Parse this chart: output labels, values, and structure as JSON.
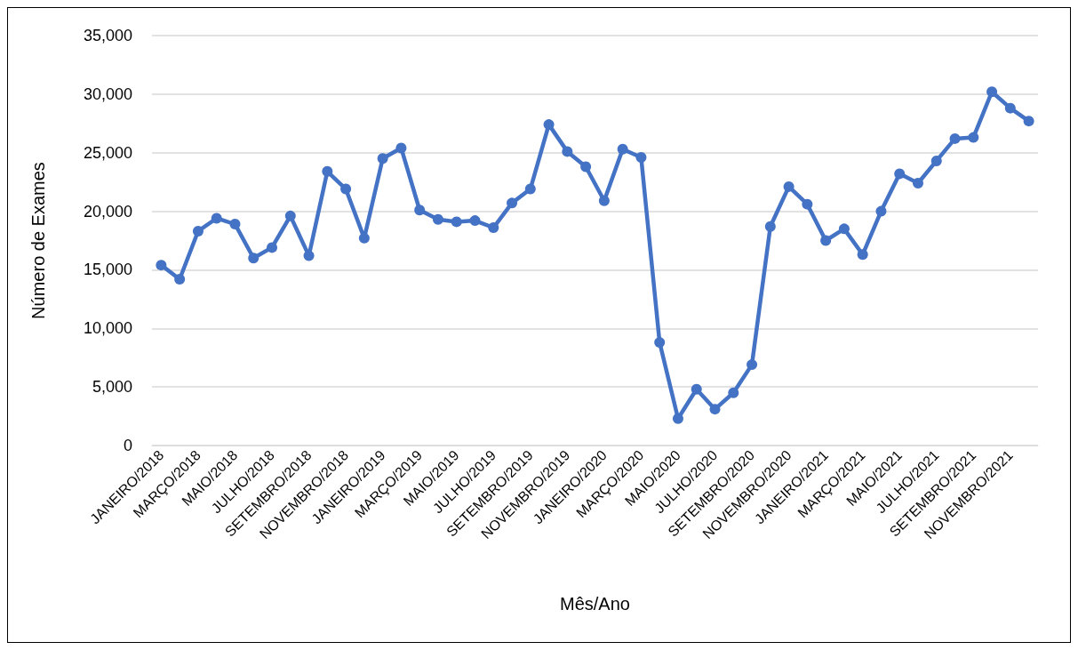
{
  "chart_data": {
    "type": "line",
    "xlabel": "Mês/Ano",
    "ylabel": "Número de Exames",
    "categories": [
      "JANEIRO/2018",
      null,
      "MARÇO/2018",
      null,
      "MAIO/2018",
      null,
      "JULHO/2018",
      null,
      "SETEMBRO/2018",
      null,
      "NOVEMBRO/2018",
      null,
      "JANEIRO/2019",
      null,
      "MARÇO/2019",
      null,
      "MAIO/2019",
      null,
      "JULHO/2019",
      null,
      "SETEMBRO/2019",
      null,
      "NOVEMBRO/2019",
      null,
      "JANEIRO/2020",
      null,
      "MARÇO/2020",
      null,
      "MAIO/2020",
      null,
      "JULHO/2020",
      null,
      "SETEMBRO/2020",
      null,
      "NOVEMBRO/2020",
      null,
      "JANEIRO/2021",
      null,
      "MARÇO/2021",
      null,
      "MAIO/2021",
      null,
      "JULHO/2021",
      null,
      "SETEMBRO/2021",
      null,
      "NOVEMBRO/2021",
      null
    ],
    "series": [
      {
        "color": "#4472c4",
        "values": [
          15400,
          14200,
          18300,
          19400,
          18900,
          16000,
          16900,
          19600,
          16200,
          23400,
          21900,
          17700,
          24500,
          25400,
          20100,
          19300,
          19100,
          19200,
          18600,
          20700,
          21900,
          27400,
          25100,
          23800,
          20900,
          25300,
          24600,
          8800,
          2300,
          4800,
          3100,
          4500,
          6900,
          18700,
          22100,
          20600,
          17500,
          18500,
          16300,
          20000,
          23200,
          22400,
          24300,
          26200,
          26300,
          30200,
          28800,
          27700
        ]
      }
    ],
    "ylim": [
      0,
      35000
    ],
    "yticks": [
      {
        "value": 0,
        "label": "0"
      },
      {
        "value": 5000,
        "label": "5,000"
      },
      {
        "value": 10000,
        "label": "10,000"
      },
      {
        "value": 15000,
        "label": "15,000"
      },
      {
        "value": 20000,
        "label": "20,000"
      },
      {
        "value": 25000,
        "label": "25,000"
      },
      {
        "value": 30000,
        "label": "30,000"
      },
      {
        "value": 35000,
        "label": "35,000"
      }
    ],
    "grid": "y",
    "marker": "circle",
    "line_style": "solid"
  }
}
